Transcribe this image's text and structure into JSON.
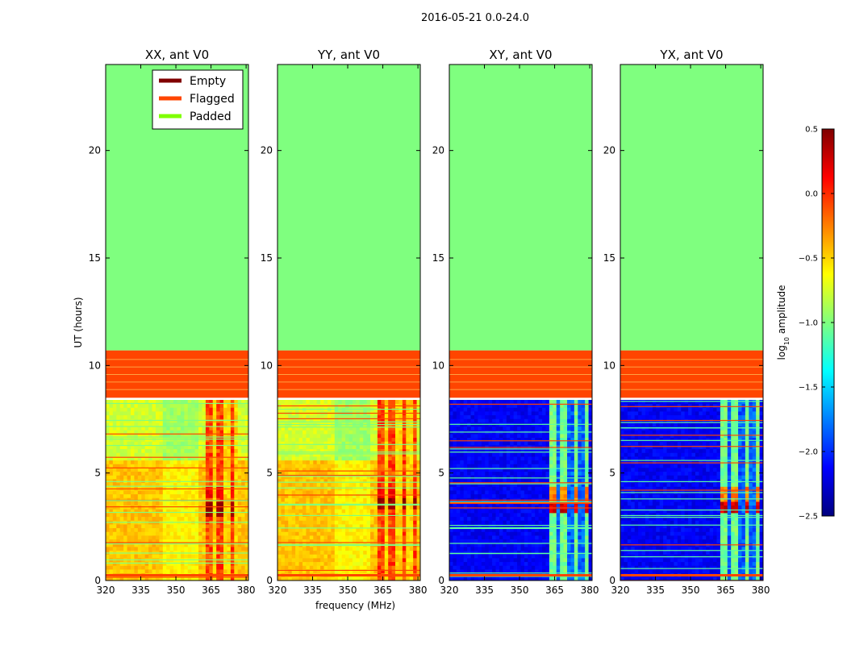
{
  "figure_title": "2016-05-21 0.0-24.0",
  "colors": {
    "padded": "#7fff7f",
    "flagged": "#ff4500",
    "empty": "#800000",
    "legend_empty": "#800000",
    "legend_flagged": "#ff4500",
    "legend_padded": "#7fff00"
  },
  "chart_data": [
    {
      "type": "heatmap",
      "title": "XX, ant V0",
      "xlabel": "",
      "ylabel": "UT (hours)",
      "xlim": [
        320,
        381
      ],
      "ylim": [
        0,
        24
      ],
      "xticks": [
        "320",
        "335",
        "350",
        "365",
        "380"
      ],
      "yticks": [
        "0",
        "5",
        "10",
        "15",
        "20"
      ],
      "profile": "parallel",
      "legend": {
        "position": "top-right",
        "entries": [
          {
            "label": "Empty",
            "color_key": "legend_empty"
          },
          {
            "label": "Flagged",
            "color_key": "legend_flagged"
          },
          {
            "label": "Padded",
            "color_key": "legend_padded"
          }
        ]
      },
      "regions": [
        {
          "name": "padded",
          "ut": [
            10.7,
            24
          ]
        },
        {
          "name": "flagged",
          "ut": [
            8.5,
            10.7
          ]
        },
        {
          "name": "data",
          "ut": [
            0,
            8.4
          ]
        }
      ],
      "bright_band_freq": [
        363,
        376
      ],
      "peak_ut": [
        3.0,
        3.6
      ]
    },
    {
      "type": "heatmap",
      "title": "YY, ant V0",
      "xlabel": "frequency (MHz)",
      "ylabel": "",
      "xlim": [
        320,
        381
      ],
      "ylim": [
        0,
        24
      ],
      "xticks": [
        "320",
        "335",
        "350",
        "365",
        "380"
      ],
      "yticks": [
        "0",
        "5",
        "10",
        "15",
        "20"
      ],
      "profile": "parallel",
      "regions": [
        {
          "name": "padded",
          "ut": [
            10.7,
            24
          ]
        },
        {
          "name": "flagged",
          "ut": [
            8.5,
            10.7
          ]
        },
        {
          "name": "data",
          "ut": [
            0,
            8.4
          ]
        }
      ],
      "bright_band_freq": [
        363,
        380
      ],
      "peak_ut": [
        3.3,
        3.8
      ]
    },
    {
      "type": "heatmap",
      "title": "XY, ant V0",
      "xlabel": "",
      "ylabel": "",
      "xlim": [
        320,
        381
      ],
      "ylim": [
        0,
        24
      ],
      "xticks": [
        "320",
        "335",
        "350",
        "365",
        "380"
      ],
      "yticks": [
        "0",
        "5",
        "10",
        "15",
        "20"
      ],
      "profile": "cross",
      "regions": [
        {
          "name": "padded",
          "ut": [
            10.7,
            24
          ]
        },
        {
          "name": "flagged",
          "ut": [
            8.5,
            10.7
          ]
        },
        {
          "name": "data",
          "ut": [
            0,
            8.4
          ]
        }
      ],
      "bright_band_freq": [
        363,
        380
      ],
      "peak_ut": [
        3.2,
        3.6
      ]
    },
    {
      "type": "heatmap",
      "title": "YX, ant V0",
      "xlabel": "",
      "ylabel": "",
      "xlim": [
        320,
        381
      ],
      "ylim": [
        0,
        24
      ],
      "xticks": [
        "320",
        "335",
        "350",
        "365",
        "380"
      ],
      "yticks": [
        "0",
        "5",
        "10",
        "15",
        "20"
      ],
      "profile": "cross",
      "regions": [
        {
          "name": "padded",
          "ut": [
            10.7,
            24
          ]
        },
        {
          "name": "flagged",
          "ut": [
            8.5,
            10.7
          ]
        },
        {
          "name": "data",
          "ut": [
            0,
            8.4
          ]
        }
      ],
      "bright_band_freq": [
        363,
        380
      ],
      "peak_ut": [
        3.2,
        3.6
      ]
    }
  ],
  "colorbar": {
    "label": "log",
    "label_sub": "10",
    "label_suffix": " amplitude",
    "range": [
      -2.5,
      0.5
    ],
    "ticks": [
      "0.5",
      "0.0",
      "−0.5",
      "−1.0",
      "−1.5",
      "−2.0",
      "−2.5"
    ],
    "tick_values": [
      0.5,
      0.0,
      -0.5,
      -1.0,
      -1.5,
      -2.0,
      -2.5
    ],
    "colormap": "jet",
    "stops": [
      "#00007f",
      "#0000ff",
      "#007fff",
      "#00ffff",
      "#7fff7f",
      "#ffff00",
      "#ff7f00",
      "#ff0000",
      "#7f0000"
    ]
  }
}
